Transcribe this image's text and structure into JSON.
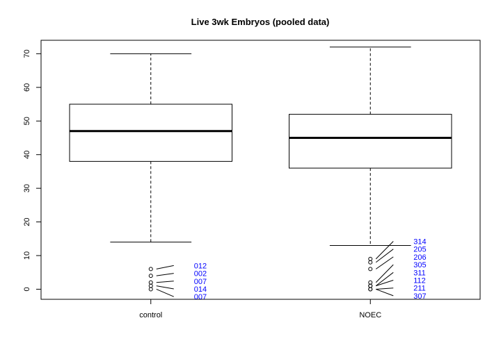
{
  "chart_data": {
    "type": "boxplot",
    "title": "Live 3wk Embryos (pooled data)",
    "xlabel": "",
    "ylabel": "",
    "ylim": [
      -3,
      74
    ],
    "yticks": [
      0,
      10,
      20,
      30,
      40,
      50,
      60,
      70
    ],
    "grid": false,
    "annotation_color": "#0000ff",
    "categories": [
      "control",
      "NOEC"
    ],
    "boxes": [
      {
        "category": "control",
        "whisker_low": 14,
        "q1": 38,
        "median": 47,
        "q3": 55,
        "whisker_high": 70,
        "outliers": [
          6,
          4,
          2,
          1,
          0
        ],
        "labels": [
          "012",
          "002",
          "007",
          "014",
          "007"
        ]
      },
      {
        "category": "NOEC",
        "whisker_low": 13,
        "q1": 36,
        "median": 45,
        "q3": 52,
        "whisker_high": 72,
        "outliers": [
          9,
          8,
          6,
          2,
          1,
          1,
          0,
          0
        ],
        "labels": [
          "314",
          "205",
          "206",
          "305",
          "311",
          "112",
          "211",
          "307"
        ]
      }
    ]
  }
}
